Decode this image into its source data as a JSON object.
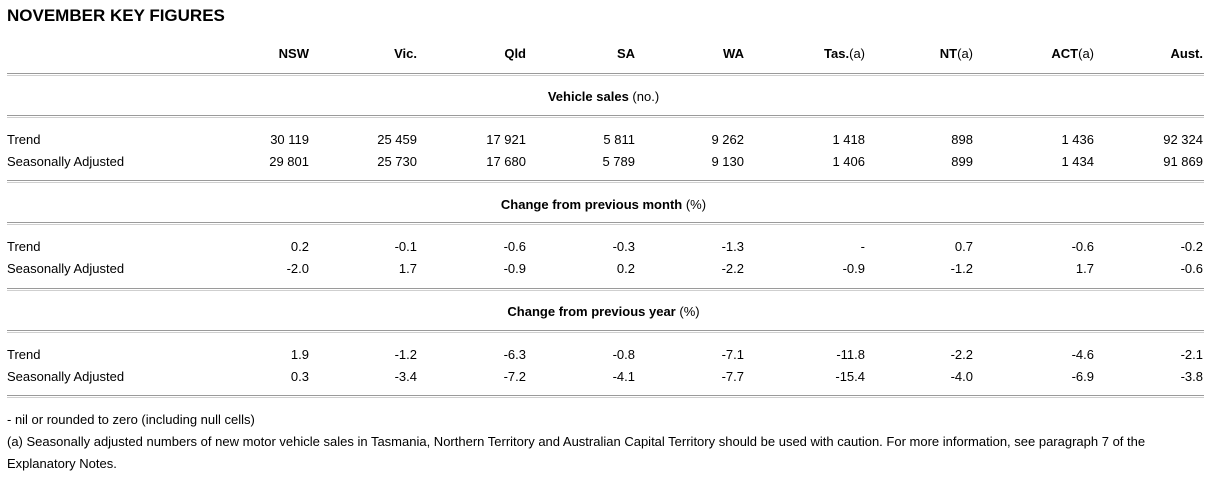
{
  "title": "NOVEMBER KEY FIGURES",
  "columns": [
    {
      "bold": "NSW",
      "suffix": ""
    },
    {
      "bold": "Vic.",
      "suffix": ""
    },
    {
      "bold": "Qld",
      "suffix": ""
    },
    {
      "bold": "SA",
      "suffix": ""
    },
    {
      "bold": "WA",
      "suffix": ""
    },
    {
      "bold": "Tas.",
      "suffix": "(a)"
    },
    {
      "bold": "NT",
      "suffix": "(a)"
    },
    {
      "bold": "ACT",
      "suffix": "(a)"
    },
    {
      "bold": "Aust.",
      "suffix": ""
    }
  ],
  "sections": [
    {
      "heading": "Vehicle sales",
      "unit": "(no.)",
      "rows": [
        {
          "label": "Trend",
          "values": [
            "30 119",
            "25 459",
            "17 921",
            "5 811",
            "9 262",
            "1 418",
            "898",
            "1 436",
            "92 324"
          ]
        },
        {
          "label": "Seasonally Adjusted",
          "values": [
            "29 801",
            "25 730",
            "17 680",
            "5 789",
            "9 130",
            "1 406",
            "899",
            "1 434",
            "91 869"
          ]
        }
      ]
    },
    {
      "heading": "Change from previous month",
      "unit": "(%)",
      "rows": [
        {
          "label": "Trend",
          "values": [
            "0.2",
            "-0.1",
            "-0.6",
            "-0.3",
            "-1.3",
            "-",
            "0.7",
            "-0.6",
            "-0.2"
          ]
        },
        {
          "label": "Seasonally Adjusted",
          "values": [
            "-2.0",
            "1.7",
            "-0.9",
            "0.2",
            "-2.2",
            "-0.9",
            "-1.2",
            "1.7",
            "-0.6"
          ]
        }
      ]
    },
    {
      "heading": "Change from previous year",
      "unit": "(%)",
      "rows": [
        {
          "label": "Trend",
          "values": [
            "1.9",
            "-1.2",
            "-6.3",
            "-0.8",
            "-7.1",
            "-11.8",
            "-2.2",
            "-4.6",
            "-2.1"
          ]
        },
        {
          "label": "Seasonally Adjusted",
          "values": [
            "0.3",
            "-3.4",
            "-7.2",
            "-4.1",
            "-7.7",
            "-15.4",
            "-4.0",
            "-6.9",
            "-3.8"
          ]
        }
      ]
    }
  ],
  "footnotes": [
    "- nil or rounded to zero (including null cells)",
    "(a) Seasonally adjusted numbers of new motor vehicle sales in Tasmania, Northern Territory and Australian Capital Territory should be used with caution. For more information, see paragraph 7 of the Explanatory Notes."
  ]
}
